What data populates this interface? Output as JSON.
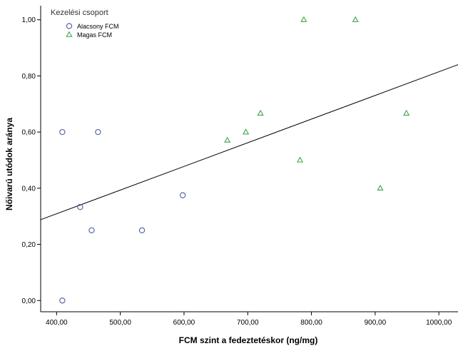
{
  "chart_data": {
    "type": "scatter",
    "xlabel": "FCM szint a fedeztetéskor (ng/mg)",
    "ylabel": "Nőivarú utódok aránya",
    "xlim": [
      375,
      1030
    ],
    "ylim": [
      -0.04,
      1.05
    ],
    "x_ticks": [
      400,
      500,
      600,
      700,
      800,
      900,
      1000
    ],
    "x_tick_labels": [
      "400,00",
      "500,00",
      "600,00",
      "700,00",
      "800,00",
      "900,00",
      "1000,00"
    ],
    "y_ticks": [
      0,
      0.2,
      0.4,
      0.6,
      0.8,
      1.0
    ],
    "y_tick_labels": [
      "0,00",
      "0,20",
      "0,40",
      "0,60",
      "0,80",
      "1,00"
    ],
    "grid": false,
    "legend": {
      "title": "Kezelési csoport",
      "placement": "top-left",
      "entries": [
        "Alacsony FCM",
        "Magas FCM"
      ]
    },
    "series": [
      {
        "name": "Alacsony FCM",
        "marker": "circle",
        "color": "#4a5ba3",
        "points": [
          {
            "x": 409,
            "y": 0.6
          },
          {
            "x": 465,
            "y": 0.6
          },
          {
            "x": 437,
            "y": 0.333
          },
          {
            "x": 455,
            "y": 0.25
          },
          {
            "x": 534,
            "y": 0.25
          },
          {
            "x": 598,
            "y": 0.375
          },
          {
            "x": 409,
            "y": 0.0
          }
        ]
      },
      {
        "name": "Magas FCM",
        "marker": "triangle",
        "color": "#3da64a",
        "points": [
          {
            "x": 788,
            "y": 1.0
          },
          {
            "x": 869,
            "y": 1.0
          },
          {
            "x": 668,
            "y": 0.571
          },
          {
            "x": 697,
            "y": 0.6
          },
          {
            "x": 720,
            "y": 0.667
          },
          {
            "x": 782,
            "y": 0.5
          },
          {
            "x": 908,
            "y": 0.4
          },
          {
            "x": 949,
            "y": 0.667
          }
        ]
      }
    ],
    "fit_line": {
      "type": "linear",
      "color": "#000000",
      "points": [
        {
          "x": 375,
          "y": 0.288
        },
        {
          "x": 1030,
          "y": 0.84
        }
      ]
    }
  }
}
